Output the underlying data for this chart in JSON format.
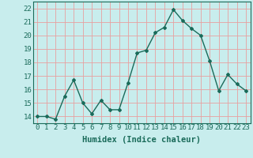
{
  "xlabel": "Humidex (Indice chaleur)",
  "x": [
    0,
    1,
    2,
    3,
    4,
    5,
    6,
    7,
    8,
    9,
    10,
    11,
    12,
    13,
    14,
    15,
    16,
    17,
    18,
    19,
    20,
    21,
    22,
    23
  ],
  "y": [
    14.0,
    14.0,
    13.8,
    15.5,
    16.7,
    15.0,
    14.2,
    15.2,
    14.5,
    14.5,
    16.5,
    18.7,
    18.9,
    20.2,
    20.6,
    21.9,
    21.1,
    20.5,
    20.0,
    18.1,
    15.9,
    17.1,
    16.4,
    15.9
  ],
  "line_color": "#1a6b5a",
  "marker": "D",
  "marker_size": 2.0,
  "bg_color": "#c8eded",
  "grid_color": "#e8a0a0",
  "ylim": [
    13.5,
    22.5
  ],
  "yticks": [
    14,
    15,
    16,
    17,
    18,
    19,
    20,
    21,
    22
  ],
  "xticks": [
    0,
    1,
    2,
    3,
    4,
    5,
    6,
    7,
    8,
    9,
    10,
    11,
    12,
    13,
    14,
    15,
    16,
    17,
    18,
    19,
    20,
    21,
    22,
    23
  ],
  "xlabel_fontsize": 7.5,
  "tick_fontsize": 6.5,
  "linewidth": 1.0
}
